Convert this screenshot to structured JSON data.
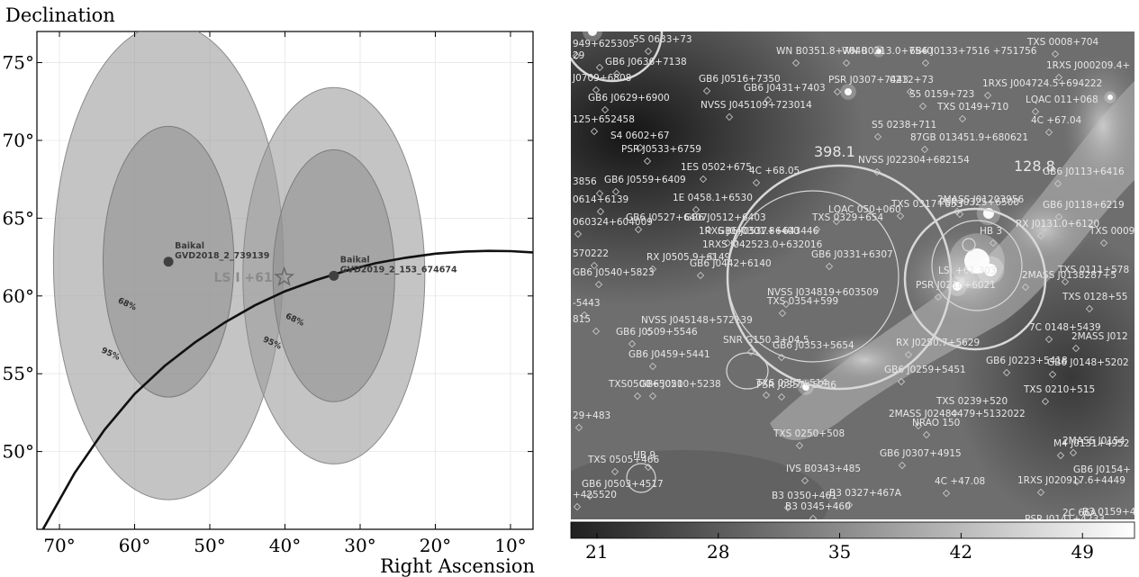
{
  "chart_data": [
    {
      "type": "scatter",
      "ylabel": "Declination",
      "xlabel": "Right Ascension",
      "xlim": [
        73,
        7
      ],
      "ylim": [
        45,
        77
      ],
      "xticks": [
        70,
        60,
        50,
        40,
        30,
        20,
        10
      ],
      "xtick_labels": [
        "70°",
        "60°",
        "50°",
        "40°",
        "30°",
        "20°",
        "10°"
      ],
      "yticks": [
        50,
        55,
        60,
        65,
        70,
        75
      ],
      "ytick_labels": [
        "50°",
        "55°",
        "60°",
        "65°",
        "70°",
        "75°"
      ],
      "grid": true,
      "events": [
        {
          "label_line1": "Baikal",
          "label_line2": "GVD2018_2_739139",
          "ra": 55.5,
          "dec": 62.2,
          "r68": 8.7,
          "r95": 15.3
        },
        {
          "label_line1": "Baikal",
          "label_line2": "GVD2019_2_153_674674",
          "ra": 33.5,
          "dec": 61.3,
          "r68": 8.1,
          "r95": 12.1
        }
      ],
      "contour_labels": [
        {
          "text": "68%",
          "ra": 62.3,
          "dec": 59.6
        },
        {
          "text": "95%",
          "ra": 64.5,
          "dec": 56.4
        },
        {
          "text": "68%",
          "ra": 40.0,
          "dec": 58.6
        },
        {
          "text": "95%",
          "ra": 43.0,
          "dec": 57.1
        }
      ],
      "source": {
        "label": "LS I +61",
        "ra": 40.1,
        "dec": 61.2
      },
      "curve": {
        "name": "",
        "ra": [
          72.2,
          68,
          64,
          60,
          56,
          52,
          48,
          44,
          40,
          36,
          32,
          28,
          24,
          20,
          16,
          12.9,
          10,
          7
        ],
        "dec": [
          45.0,
          48.6,
          51.4,
          53.7,
          55.5,
          57.0,
          58.3,
          59.4,
          60.3,
          61.0,
          61.6,
          62.1,
          62.45,
          62.72,
          62.86,
          62.9,
          62.88,
          62.8
        ]
      }
    },
    {
      "type": "heatmap",
      "colorbar_ticks": [
        "21",
        "28",
        "35",
        "42",
        "49"
      ],
      "colorbar_range": [
        19.5,
        52
      ],
      "colormap": "gray",
      "big_circles": [
        {
          "label": "398.1"
        },
        {
          "label": "128.8"
        }
      ],
      "catalog_labels": [
        "949+625305",
        "5S 0633+73",
        "29",
        "GB6 J0636+7138",
        "J0709+6808",
        "GB6 J0516+7350",
        "WN B0351.8+7640",
        "WN B0213.0+7540",
        "6B6 J0133+7516 +751756",
        "TXS 0008+704",
        "1RXS J000209.4+",
        "GB6 J0431+7403",
        "PSR J0307+7443",
        "0212+73",
        "1RXS J004724.5+694222",
        "GB6 J0629+6900",
        "NVSS J045109+723014",
        "S5 0159+723",
        "TXS 0149+710",
        "LQAC 011+068",
        "125+652458",
        "S5 0238+711",
        "4C +67.04",
        "S4 0602+67",
        "87GB 013451.9+680621",
        "PSR J0533+6759",
        "398.1",
        "1ES 0502+675",
        "4C +68.05",
        "NVSS J022304+682154",
        "128.8",
        "GB6 J0113+6416",
        "3856",
        "GB6 J0559+6409",
        "1E 0458.1+6530",
        "LQAC 050+060",
        "2MASS J01203956",
        "TXS 0329+654",
        "GB6 J0118+6219",
        "0614+6139",
        "GB6 J0527+6407",
        "GB6 J0512+6403",
        "TXS 0317+653",
        "PSR J0325+6500",
        "060324+604009",
        "GB6 J0537+6400",
        "1RXS J040301.8+643446",
        "HB 3",
        "RX J0131.0+6120",
        "1RXS J042523.0+632016",
        "570222",
        "RX J0505.9+6149",
        "GB6 J0331+6307",
        "LSI +61 303",
        "TXS 0009",
        "GB6 J0540+5823",
        "GB6 J0442+6140",
        "PSR J0218+6021",
        "TXS 0111+578",
        "NVSS J034819+603509",
        "2MASS J0138287+5",
        "TXS 0354+599",
        "TXS 0128+55",
        "-5443",
        "815",
        "NVSS J045148+572139",
        "7C 0148+5439",
        "2MASS J012",
        "GB6 J0509+5546",
        "SNR G150.3+04.5",
        "RX J0250.7+5629",
        "GB6 J0459+5441",
        "GB6 J0353+5654",
        "GB6 J0223+5418",
        "GB6 J0148+5202",
        "GB6 J0259+5451",
        "TXS0500+5021",
        "GB6 J0500+5238",
        "PSR J0357+5236",
        "TXS 0357+514",
        "TXS 0210+515",
        "29+483",
        "TXS 0239+520",
        "2MASS J02484479+5132022",
        "NRAO 150",
        "TXS 0250+508",
        "2MASS J0154",
        "GB6 J0307+4915",
        "M4 J0131+4952",
        "IVS B0343+485",
        "GB6 J0154+",
        "HB 9",
        "TXS 0505+466",
        "4C +47.08",
        "1RXS J020917.6+4449",
        "GB6 J0503+4517",
        "B3 0327+467A",
        "+425520",
        "B3 0350+461",
        "B3 0345+460",
        "B3 0159+4",
        "PSR J0141+4233",
        "2C 66A"
      ]
    }
  ]
}
